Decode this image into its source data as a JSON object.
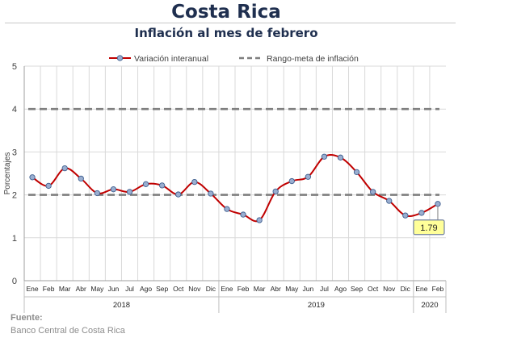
{
  "chart_data": {
    "type": "line",
    "title": "Costa Rica",
    "subtitle": "Inflación al mes de febrero",
    "ylabel": "Porcentajes",
    "ylim": [
      0,
      5
    ],
    "yticks": [
      "0",
      "1",
      "2",
      "3",
      "4",
      "5"
    ],
    "grid": true,
    "legend_position": "top",
    "months": [
      "Ene",
      "Feb",
      "Mar",
      "Abr",
      "May",
      "Jun",
      "Jul",
      "Ago",
      "Sep",
      "Oct",
      "Nov",
      "Dic",
      "Ene",
      "Feb",
      "Mar",
      "Abr",
      "May",
      "Jun",
      "Jul",
      "Ago",
      "Sep",
      "Oct",
      "Nov",
      "Dic",
      "Ene",
      "Feb"
    ],
    "year_groups": [
      {
        "label": "2018",
        "count": 12
      },
      {
        "label": "2019",
        "count": 12
      },
      {
        "label": "2020",
        "count": 2
      }
    ],
    "series": [
      {
        "name": "Variación interanual",
        "color": "#c00000",
        "marker_color": "#9aaed0",
        "values": [
          2.41,
          2.21,
          2.62,
          2.38,
          2.04,
          2.13,
          2.07,
          2.25,
          2.22,
          2.01,
          2.3,
          2.03,
          1.67,
          1.54,
          1.41,
          2.08,
          2.32,
          2.42,
          2.89,
          2.87,
          2.53,
          2.07,
          1.86,
          1.52,
          1.58,
          1.79
        ]
      },
      {
        "name": "Rango-meta de inflación",
        "color": "#7f7f7f",
        "style": "dashed",
        "bounds": [
          2,
          4
        ]
      }
    ],
    "annotation": {
      "label": "1.79",
      "index": 25
    }
  },
  "source": {
    "label": "Fuente:",
    "text": "Banco Central de Costa Rica"
  }
}
